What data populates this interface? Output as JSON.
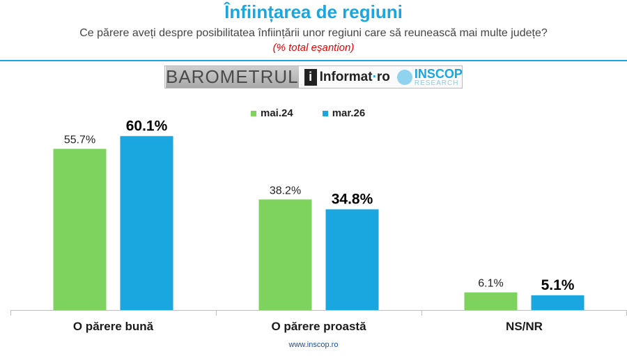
{
  "header": {
    "title": "Înființarea de regiuni",
    "subtitle": "Ce părere aveți despre posibilitatea înființării unor regiuni care să reunească mai multe județe?",
    "note": "(% total eșantion)"
  },
  "logos": {
    "barometru": "BAROMETRUL",
    "informat_prefix": "i",
    "informat_main": "Informat",
    "informat_dot": "·",
    "informat_suffix": "ro",
    "inscop_main": "INSCOP",
    "inscop_sub": "RESEARCH"
  },
  "footer": {
    "url": "www.inscop.ro"
  },
  "colors": {
    "accent": "#1aa6df",
    "series1": "#7ed35f",
    "series2": "#1aa6df",
    "note": "#e60000"
  },
  "chart_data": {
    "type": "bar",
    "categories": [
      "O părere bună",
      "O părere proastă",
      "NS/NR"
    ],
    "series": [
      {
        "name": "mai.24",
        "values": [
          55.7,
          38.2,
          6.1
        ],
        "labels": [
          "55.7%",
          "38.2%",
          "6.1%"
        ]
      },
      {
        "name": "mar.26",
        "values": [
          60.1,
          34.8,
          5.1
        ],
        "labels": [
          "60.1%",
          "34.8%",
          "5.1%"
        ]
      }
    ],
    "ylim": [
      0,
      65
    ],
    "legend": "top-center",
    "grid": false
  }
}
